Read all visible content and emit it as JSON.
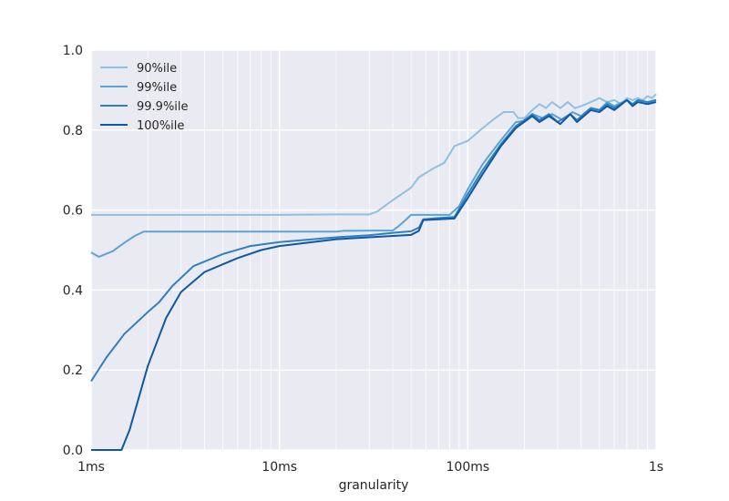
{
  "chart_data": {
    "type": "line",
    "xlabel": "granularity",
    "xscale": "log",
    "xlim_seconds": [
      0.001,
      1
    ],
    "ylim": [
      0,
      1
    ],
    "x_ticks": [
      {
        "value": 0.001,
        "label": "1ms"
      },
      {
        "value": 0.01,
        "label": "10ms"
      },
      {
        "value": 0.1,
        "label": "100ms"
      },
      {
        "value": 1,
        "label": "1s"
      }
    ],
    "y_ticks": [
      {
        "value": 0.0,
        "label": "0.0"
      },
      {
        "value": 0.2,
        "label": "0.2"
      },
      {
        "value": 0.4,
        "label": "0.4"
      },
      {
        "value": 0.6,
        "label": "0.6"
      },
      {
        "value": 0.8,
        "label": "0.8"
      },
      {
        "value": 1.0,
        "label": "1.0"
      }
    ],
    "grid": true,
    "legend_position": "top-left",
    "series": [
      {
        "name": "90%ile",
        "color": "#8fc1e0",
        "points": [
          [
            0.001,
            0.588
          ],
          [
            0.005,
            0.588
          ],
          [
            0.01,
            0.588
          ],
          [
            0.02,
            0.589
          ],
          [
            0.03,
            0.589
          ],
          [
            0.033,
            0.596
          ],
          [
            0.04,
            0.625
          ],
          [
            0.05,
            0.656
          ],
          [
            0.055,
            0.682
          ],
          [
            0.065,
            0.703
          ],
          [
            0.075,
            0.718
          ],
          [
            0.085,
            0.76
          ],
          [
            0.1,
            0.773
          ],
          [
            0.12,
            0.805
          ],
          [
            0.14,
            0.83
          ],
          [
            0.155,
            0.845
          ],
          [
            0.175,
            0.845
          ],
          [
            0.185,
            0.83
          ],
          [
            0.2,
            0.83
          ],
          [
            0.22,
            0.85
          ],
          [
            0.24,
            0.865
          ],
          [
            0.26,
            0.855
          ],
          [
            0.28,
            0.87
          ],
          [
            0.31,
            0.855
          ],
          [
            0.34,
            0.87
          ],
          [
            0.37,
            0.855
          ],
          [
            0.4,
            0.86
          ],
          [
            0.45,
            0.87
          ],
          [
            0.5,
            0.88
          ],
          [
            0.55,
            0.87
          ],
          [
            0.6,
            0.875
          ],
          [
            0.65,
            0.865
          ],
          [
            0.7,
            0.88
          ],
          [
            0.75,
            0.875
          ],
          [
            0.8,
            0.88
          ],
          [
            0.85,
            0.875
          ],
          [
            0.9,
            0.885
          ],
          [
            0.95,
            0.88
          ],
          [
            1.0,
            0.89
          ]
        ]
      },
      {
        "name": "99%ile",
        "color": "#5ca3d6",
        "points": [
          [
            0.001,
            0.494
          ],
          [
            0.0011,
            0.483
          ],
          [
            0.0013,
            0.497
          ],
          [
            0.0015,
            0.518
          ],
          [
            0.0017,
            0.535
          ],
          [
            0.0019,
            0.546
          ],
          [
            0.003,
            0.546
          ],
          [
            0.01,
            0.546
          ],
          [
            0.02,
            0.546
          ],
          [
            0.022,
            0.548
          ],
          [
            0.04,
            0.549
          ],
          [
            0.043,
            0.56
          ],
          [
            0.047,
            0.576
          ],
          [
            0.05,
            0.588
          ],
          [
            0.06,
            0.588
          ],
          [
            0.08,
            0.588
          ],
          [
            0.09,
            0.61
          ],
          [
            0.1,
            0.652
          ],
          [
            0.12,
            0.715
          ],
          [
            0.15,
            0.775
          ],
          [
            0.18,
            0.82
          ],
          [
            0.2,
            0.823
          ],
          [
            0.22,
            0.84
          ],
          [
            0.25,
            0.83
          ],
          [
            0.28,
            0.84
          ],
          [
            0.32,
            0.825
          ],
          [
            0.36,
            0.845
          ],
          [
            0.4,
            0.835
          ],
          [
            0.45,
            0.855
          ],
          [
            0.5,
            0.85
          ],
          [
            0.55,
            0.87
          ],
          [
            0.6,
            0.86
          ],
          [
            0.7,
            0.875
          ],
          [
            0.75,
            0.865
          ],
          [
            0.8,
            0.875
          ],
          [
            0.9,
            0.87
          ],
          [
            1.0,
            0.875
          ]
        ]
      },
      {
        "name": "99.9%ile",
        "color": "#3080c1",
        "points": [
          [
            0.001,
            0.172
          ],
          [
            0.0012,
            0.23
          ],
          [
            0.0015,
            0.29
          ],
          [
            0.002,
            0.345
          ],
          [
            0.0023,
            0.37
          ],
          [
            0.0027,
            0.41
          ],
          [
            0.0035,
            0.46
          ],
          [
            0.005,
            0.49
          ],
          [
            0.007,
            0.51
          ],
          [
            0.01,
            0.52
          ],
          [
            0.02,
            0.532
          ],
          [
            0.03,
            0.537
          ],
          [
            0.04,
            0.543
          ],
          [
            0.05,
            0.547
          ],
          [
            0.055,
            0.556
          ],
          [
            0.058,
            0.577
          ],
          [
            0.07,
            0.58
          ],
          [
            0.085,
            0.583
          ],
          [
            0.1,
            0.64
          ],
          [
            0.12,
            0.7
          ],
          [
            0.15,
            0.765
          ],
          [
            0.18,
            0.81
          ],
          [
            0.2,
            0.825
          ],
          [
            0.22,
            0.84
          ],
          [
            0.24,
            0.825
          ],
          [
            0.27,
            0.84
          ],
          [
            0.3,
            0.82
          ],
          [
            0.35,
            0.84
          ],
          [
            0.38,
            0.825
          ],
          [
            0.45,
            0.855
          ],
          [
            0.5,
            0.85
          ],
          [
            0.55,
            0.865
          ],
          [
            0.6,
            0.855
          ],
          [
            0.7,
            0.875
          ],
          [
            0.75,
            0.865
          ],
          [
            0.8,
            0.875
          ],
          [
            0.9,
            0.87
          ],
          [
            1.0,
            0.875
          ]
        ]
      },
      {
        "name": "100%ile",
        "color": "#0e58a4",
        "points": [
          [
            0.001,
            0.0
          ],
          [
            0.00145,
            0.0
          ],
          [
            0.0016,
            0.05
          ],
          [
            0.002,
            0.21
          ],
          [
            0.0025,
            0.33
          ],
          [
            0.003,
            0.395
          ],
          [
            0.004,
            0.445
          ],
          [
            0.006,
            0.48
          ],
          [
            0.008,
            0.5
          ],
          [
            0.01,
            0.51
          ],
          [
            0.02,
            0.527
          ],
          [
            0.03,
            0.532
          ],
          [
            0.05,
            0.538
          ],
          [
            0.055,
            0.548
          ],
          [
            0.058,
            0.575
          ],
          [
            0.07,
            0.577
          ],
          [
            0.085,
            0.579
          ],
          [
            0.1,
            0.63
          ],
          [
            0.12,
            0.69
          ],
          [
            0.15,
            0.76
          ],
          [
            0.18,
            0.805
          ],
          [
            0.22,
            0.835
          ],
          [
            0.24,
            0.82
          ],
          [
            0.27,
            0.835
          ],
          [
            0.31,
            0.815
          ],
          [
            0.35,
            0.84
          ],
          [
            0.38,
            0.82
          ],
          [
            0.45,
            0.85
          ],
          [
            0.5,
            0.845
          ],
          [
            0.55,
            0.86
          ],
          [
            0.6,
            0.85
          ],
          [
            0.7,
            0.875
          ],
          [
            0.75,
            0.86
          ],
          [
            0.8,
            0.87
          ],
          [
            0.9,
            0.865
          ],
          [
            1.0,
            0.87
          ]
        ]
      }
    ]
  }
}
